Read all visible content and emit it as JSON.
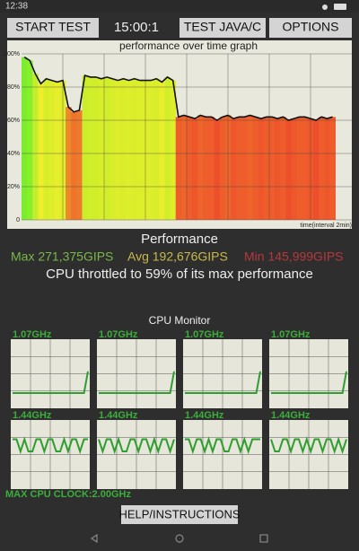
{
  "status_bar": {
    "time": "12:38"
  },
  "toolbar": {
    "start_button": "START TEST",
    "timer": "15:00:1",
    "java_button": "TEST JAVA/C",
    "options_button": "OPTIONS"
  },
  "graph": {
    "type": "area",
    "title": "performance over time graph",
    "x_label": "time(interval 2min)",
    "ylim": [
      0,
      100
    ],
    "yticks": [
      {
        "value": 0,
        "label": "0"
      },
      {
        "value": 20,
        "label": "20%"
      },
      {
        "value": 40,
        "label": "40%"
      },
      {
        "value": 60,
        "label": "60%"
      },
      {
        "value": 80,
        "label": "80%"
      },
      {
        "value": 100,
        "label": "100%"
      }
    ],
    "xlim": [
      0,
      60
    ],
    "values": [
      98,
      96,
      88,
      82,
      85,
      84,
      83,
      84,
      68,
      65,
      66,
      87,
      86,
      86,
      85,
      86,
      85,
      84,
      85,
      84,
      85,
      84,
      84,
      84,
      85,
      83,
      86,
      84,
      62,
      63,
      62,
      61,
      63,
      62,
      62,
      60,
      62,
      63,
      61,
      62,
      62,
      63,
      62,
      61,
      62,
      62,
      61,
      62,
      60,
      61,
      62,
      62,
      61,
      60,
      62,
      61,
      62
    ]
  },
  "performance": {
    "heading": "Performance",
    "max": "Max 271,375GIPS",
    "avg": "Avg 192,676GIPS",
    "min": "Min 145,999GIPS",
    "summary": "CPU throttled to 59% of its max performance"
  },
  "cpu_monitor": {
    "title": "CPU Monitor",
    "ylim": [
      0,
      2
    ],
    "cores": [
      {
        "label": "1.07GHz",
        "values": [
          0.44,
          0.44,
          0.44,
          0.44,
          0.44,
          0.44,
          0.44,
          0.44,
          0.44,
          0.44,
          0.44,
          0.44,
          0.44,
          0.44,
          0.44,
          0.44,
          0.44,
          0.44,
          0.44,
          1.07
        ]
      },
      {
        "label": "1.07GHz",
        "values": [
          0.44,
          0.44,
          0.44,
          0.44,
          0.44,
          0.44,
          0.44,
          0.44,
          0.44,
          0.44,
          0.44,
          0.44,
          0.44,
          0.44,
          0.44,
          0.44,
          0.44,
          0.44,
          0.44,
          1.07
        ]
      },
      {
        "label": "1.07GHz",
        "values": [
          0.44,
          0.44,
          0.44,
          0.44,
          0.44,
          0.44,
          0.44,
          0.44,
          0.44,
          0.44,
          0.44,
          0.44,
          0.44,
          0.44,
          0.44,
          0.44,
          0.44,
          0.44,
          0.44,
          1.07
        ]
      },
      {
        "label": "1.07GHz",
        "values": [
          0.44,
          0.44,
          0.44,
          0.44,
          0.44,
          0.44,
          0.44,
          0.44,
          0.44,
          0.44,
          0.44,
          0.44,
          0.44,
          0.44,
          0.44,
          0.44,
          0.44,
          0.44,
          0.44,
          1.07
        ]
      },
      {
        "label": "1.44GHz",
        "values": [
          1.44,
          1.44,
          1.09,
          1.44,
          1.09,
          1.09,
          1.44,
          1.44,
          1.09,
          1.44,
          1.44,
          1.09,
          1.09,
          1.44,
          1.09,
          1.44,
          1.44,
          1.09,
          1.44,
          1.44
        ]
      },
      {
        "label": "1.44GHz",
        "values": [
          1.44,
          1.09,
          1.44,
          1.44,
          1.09,
          1.44,
          1.09,
          1.09,
          1.44,
          1.44,
          1.09,
          1.44,
          1.44,
          1.09,
          1.44,
          1.09,
          1.44,
          1.44,
          1.09,
          1.44
        ]
      },
      {
        "label": "1.44GHz",
        "values": [
          1.44,
          1.44,
          1.09,
          1.44,
          1.44,
          1.09,
          1.44,
          1.09,
          1.44,
          1.44,
          1.09,
          1.09,
          1.44,
          1.44,
          1.09,
          1.44,
          1.09,
          1.44,
          1.44,
          1.44
        ]
      },
      {
        "label": "1.44GHz",
        "values": [
          1.44,
          1.09,
          1.09,
          1.44,
          1.44,
          1.09,
          1.44,
          1.44,
          1.09,
          1.44,
          1.09,
          1.44,
          1.44,
          1.09,
          1.44,
          1.44,
          1.09,
          1.44,
          1.09,
          1.44
        ]
      }
    ]
  },
  "max_clock": "MAX CPU CLOCK:2.00GHz",
  "help_button": "HELP/INSTRUCTIONS"
}
